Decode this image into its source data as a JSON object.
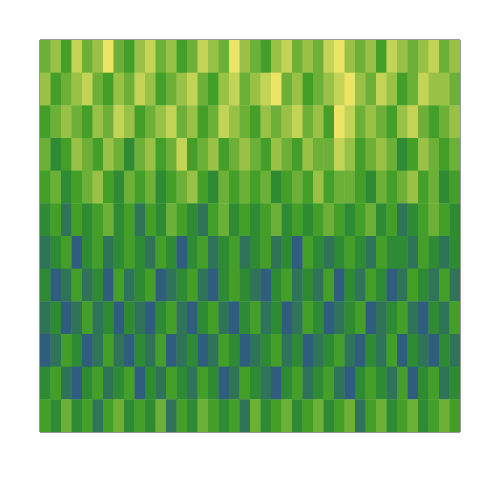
{
  "chart_data": {
    "type": "heatmap",
    "xlim": [
      0,
      40
    ],
    "ylim": [
      0,
      12
    ],
    "tick_labels": false,
    "color_range": [
      0,
      9
    ],
    "cells": [
      [
        6,
        7,
        5,
        8,
        6,
        7,
        9,
        6,
        5,
        7,
        8,
        6,
        7,
        5,
        6,
        8,
        7,
        6,
        9,
        7,
        6,
        5,
        7,
        8,
        6,
        7,
        6,
        8,
        9,
        7,
        6,
        7,
        5,
        8,
        7,
        6,
        7,
        8,
        6,
        7
      ],
      [
        7,
        5,
        6,
        7,
        8,
        6,
        5,
        7,
        6,
        8,
        7,
        5,
        6,
        7,
        8,
        6,
        5,
        7,
        8,
        6,
        7,
        8,
        9,
        6,
        7,
        5,
        6,
        7,
        8,
        9,
        7,
        6,
        8,
        7,
        5,
        6,
        8,
        7,
        7,
        6
      ],
      [
        5,
        6,
        7,
        6,
        5,
        7,
        6,
        8,
        7,
        5,
        6,
        7,
        8,
        6,
        7,
        5,
        6,
        8,
        7,
        6,
        5,
        7,
        6,
        7,
        8,
        6,
        7,
        5,
        9,
        8,
        6,
        7,
        6,
        5,
        7,
        8,
        6,
        5,
        6,
        7
      ],
      [
        6,
        4,
        5,
        7,
        6,
        5,
        7,
        6,
        4,
        6,
        7,
        5,
        6,
        8,
        5,
        6,
        7,
        5,
        6,
        7,
        6,
        5,
        7,
        6,
        5,
        7,
        6,
        6,
        8,
        7,
        5,
        6,
        7,
        6,
        4,
        5,
        7,
        6,
        5,
        6
      ],
      [
        5,
        6,
        4,
        5,
        6,
        7,
        5,
        4,
        6,
        5,
        6,
        4,
        5,
        6,
        7,
        5,
        4,
        6,
        5,
        6,
        5,
        6,
        4,
        5,
        6,
        5,
        7,
        5,
        6,
        6,
        5,
        4,
        6,
        5,
        6,
        7,
        5,
        6,
        4,
        5
      ],
      [
        4,
        5,
        3,
        5,
        4,
        5,
        6,
        4,
        5,
        3,
        5,
        4,
        6,
        5,
        4,
        3,
        5,
        6,
        4,
        5,
        4,
        5,
        6,
        4,
        5,
        4,
        5,
        6,
        5,
        4,
        5,
        6,
        4,
        5,
        3,
        4,
        5,
        6,
        5,
        4
      ],
      [
        3,
        4,
        5,
        2,
        4,
        5,
        3,
        4,
        5,
        4,
        3,
        5,
        4,
        2,
        4,
        5,
        3,
        4,
        5,
        3,
        4,
        5,
        3,
        4,
        2,
        5,
        4,
        3,
        4,
        5,
        4,
        3,
        5,
        4,
        4,
        3,
        5,
        4,
        3,
        4
      ],
      [
        4,
        2,
        3,
        5,
        3,
        4,
        2,
        5,
        3,
        4,
        5,
        2,
        3,
        4,
        5,
        3,
        2,
        4,
        5,
        4,
        3,
        2,
        4,
        5,
        3,
        4,
        3,
        5,
        2,
        4,
        3,
        5,
        4,
        2,
        3,
        5,
        4,
        3,
        5,
        3
      ],
      [
        3,
        4,
        2,
        3,
        5,
        3,
        4,
        2,
        4,
        3,
        2,
        4,
        5,
        3,
        2,
        4,
        5,
        3,
        2,
        4,
        5,
        3,
        4,
        2,
        3,
        5,
        4,
        2,
        3,
        4,
        5,
        2,
        3,
        4,
        5,
        3,
        2,
        4,
        3,
        5
      ],
      [
        2,
        3,
        5,
        4,
        2,
        3,
        5,
        3,
        2,
        4,
        3,
        5,
        2,
        3,
        4,
        2,
        3,
        5,
        4,
        2,
        3,
        4,
        5,
        3,
        4,
        2,
        3,
        4,
        5,
        3,
        2,
        4,
        3,
        5,
        2,
        4,
        3,
        2,
        4,
        3
      ],
      [
        4,
        5,
        3,
        2,
        4,
        5,
        3,
        4,
        5,
        2,
        4,
        3,
        5,
        4,
        3,
        5,
        4,
        2,
        3,
        5,
        4,
        3,
        2,
        4,
        5,
        3,
        4,
        5,
        3,
        2,
        4,
        5,
        4,
        3,
        5,
        2,
        4,
        5,
        3,
        4
      ],
      [
        5,
        4,
        6,
        4,
        5,
        3,
        5,
        6,
        4,
        5,
        4,
        6,
        3,
        5,
        4,
        6,
        5,
        4,
        5,
        3,
        6,
        4,
        5,
        6,
        4,
        5,
        6,
        4,
        5,
        6,
        3,
        5,
        6,
        4,
        5,
        6,
        4,
        5,
        6,
        5
      ]
    ]
  }
}
